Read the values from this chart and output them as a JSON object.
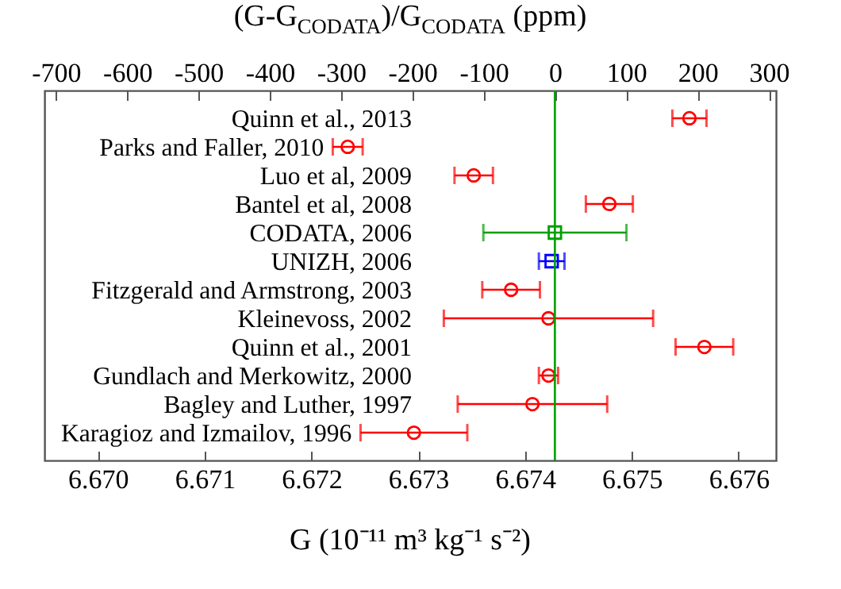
{
  "chart_data": {
    "type": "scatter",
    "orientation": "horizontal",
    "x2label": "(G-G$_{CODATA}$)/G$_{CODATA}$ (ppm)",
    "xlabel": "G (10⁻¹¹ m³ kg⁻¹ s⁻²)",
    "categories": [
      "Quinn et al., 2013",
      "Parks and Faller, 2010",
      "Luo et al, 2009",
      "Bantel et al, 2008",
      "CODATA, 2006",
      "UNIZH, 2006",
      "Fitzgerald and Armstrong, 2003",
      "Kleinevoss,  2002",
      "Quinn et al., 2001",
      "Gundlach and Merkowitz, 2000",
      "Bagley and Luther, 1997",
      "Karagioz and Izmailov, 1996"
    ],
    "series": [
      {
        "color": "#ff0000",
        "marker": "circle",
        "values": [
          6.67554,
          6.67234,
          6.67352,
          6.67479,
          null,
          null,
          6.67387,
          6.67422,
          6.67568,
          6.67422,
          6.67407,
          6.67296
        ],
        "errors": [
          0.00016,
          0.00014,
          0.00018,
          0.00022,
          null,
          null,
          0.00027,
          0.00098,
          0.00027,
          9e-05,
          0.0007,
          0.0005
        ]
      },
      {
        "color": "#00a000",
        "marker": "square",
        "values": [
          null,
          null,
          null,
          null,
          6.67428,
          null,
          null,
          null,
          null,
          null,
          null,
          null
        ],
        "errors": [
          null,
          null,
          null,
          null,
          0.00067,
          null,
          null,
          null,
          null,
          null,
          null,
          null
        ]
      },
      {
        "color": "#0000ff",
        "marker": "square",
        "values": [
          null,
          null,
          null,
          null,
          null,
          6.67425,
          null,
          null,
          null,
          null,
          null,
          null
        ],
        "errors": [
          null,
          null,
          null,
          null,
          null,
          0.00012,
          null,
          null,
          null,
          null,
          null,
          null
        ]
      }
    ],
    "xlim": [
      6.6695,
      6.67635
    ],
    "xticks": [
      {
        "value": 6.67,
        "label": "6.670"
      },
      {
        "value": 6.671,
        "label": "6.671"
      },
      {
        "value": 6.672,
        "label": "6.672"
      },
      {
        "value": 6.673,
        "label": "6.673"
      },
      {
        "value": 6.674,
        "label": "6.674"
      },
      {
        "value": 6.675,
        "label": "6.675"
      },
      {
        "value": 6.676,
        "label": "6.676"
      }
    ],
    "x2lim": [
      -716,
      310
    ],
    "x2ticks": [
      -700,
      -600,
      -500,
      -400,
      -300,
      -200,
      -100,
      0,
      100,
      200,
      300
    ],
    "ref_lines": [
      {
        "axis": "x",
        "value": 6.67428,
        "color": "#00a000"
      }
    ]
  }
}
